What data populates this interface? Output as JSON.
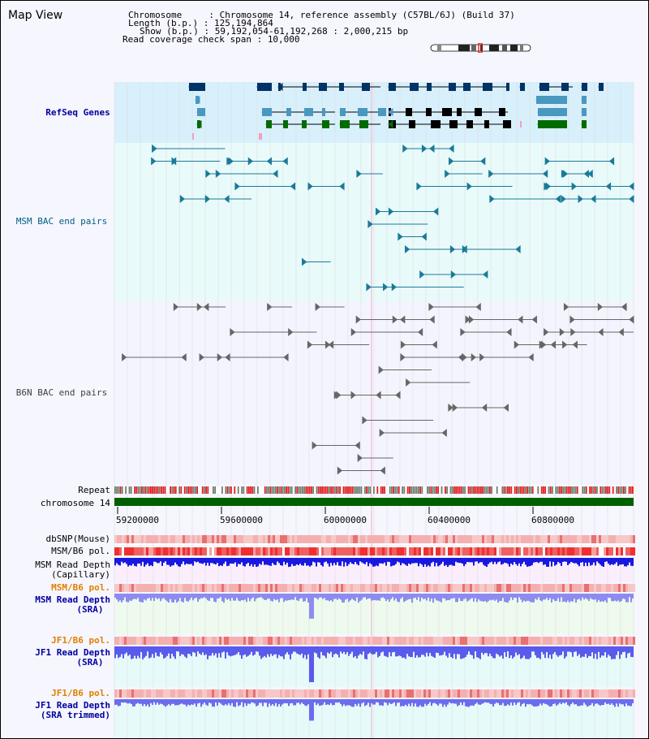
{
  "view": {
    "title": "Map View",
    "header": {
      "chromosome_key": "Chromosome     :",
      "chromosome": "Chromosome 14, reference assembly (C57BL/6J) (Build 37)",
      "length_key": "Length (b.p.) :",
      "length": "125,194,864",
      "show_key": "Show (b.p.) :",
      "show": "59,192,054-61,192,268 : 2,000,215 bp",
      "coverage_key": "Read coverage check span :",
      "coverage": "10,000"
    }
  },
  "tracks": {
    "refseq": "RefSeq Genes",
    "msm_bac": "MSM BAC end pairs",
    "b6n_bac": "B6N BAC end pairs",
    "repeat": "Repeat",
    "chromosome": "chromosome 14",
    "dbsnp": "dbSNP(Mouse)",
    "msm_b6_pol_1": "MSM/B6 pol.",
    "msm_depth_cap_1": "MSM Read Depth",
    "msm_depth_cap_2": "(Capillary)",
    "msm_b6_pol_2": "MSM/B6 pol.",
    "msm_depth_sra_1": "MSM Read Depth",
    "msm_depth_sra_2": "(SRA)",
    "jf1_b6_pol_1": "JF1/B6 pol.",
    "jf1_depth_sra_1": "JF1 Read Depth",
    "jf1_depth_sra_2": "(SRA)",
    "jf1_b6_pol_2": "JF1/B6 pol.",
    "jf1_depth_trim_1": "JF1 Read Depth",
    "jf1_depth_trim_2": "(SRA trimmed)"
  },
  "axis": {
    "range": [
      59192054,
      61192268
    ],
    "ticks": [
      "59200000",
      "59600000",
      "60000000",
      "60400000",
      "60800000"
    ]
  },
  "colors": {
    "refseq_label": "#0000a0",
    "msm_label": "#006080",
    "b6n_label": "#404040",
    "orange_label": "#e08000",
    "blue_label": "#0000a0",
    "chromosome_bar": "#006000"
  }
}
